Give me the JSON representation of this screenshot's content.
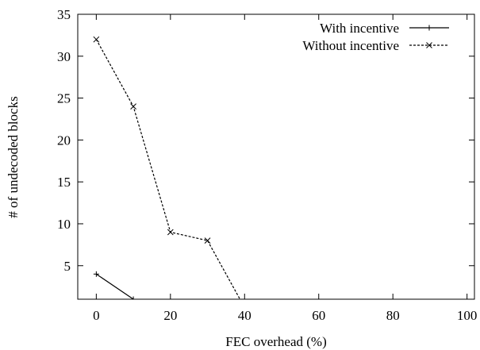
{
  "chart_data": {
    "type": "line",
    "title": "",
    "xlabel": "FEC overhead (%)",
    "ylabel": "# of undecoded blocks",
    "xlim": [
      -5,
      102
    ],
    "ylim": [
      1,
      35
    ],
    "xticks": [
      0,
      20,
      40,
      60,
      80,
      100
    ],
    "yticks": [
      5,
      10,
      15,
      20,
      25,
      30,
      35
    ],
    "grid": false,
    "legend_position": "top-right",
    "series": [
      {
        "name": "With incentive",
        "style": "solid",
        "marker": "plus",
        "color": "#000000",
        "x": [
          0,
          10,
          20
        ],
        "y": [
          4,
          1,
          0
        ]
      },
      {
        "name": "Without incentive",
        "style": "dashed",
        "marker": "cross",
        "color": "#000000",
        "x": [
          0,
          10,
          20,
          30,
          40
        ],
        "y": [
          32,
          24,
          9,
          8,
          0
        ]
      }
    ]
  }
}
